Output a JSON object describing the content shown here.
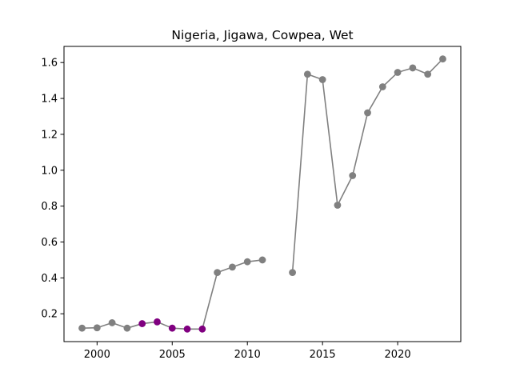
{
  "chart_data": {
    "type": "line",
    "title": "Nigeria, Jigawa, Cowpea, Wet",
    "xlabel": "",
    "ylabel": "",
    "xlim": [
      1997.8,
      2024.2
    ],
    "ylim": [
      0.045,
      1.69
    ],
    "x_ticks": [
      2000,
      2005,
      2010,
      2015,
      2020
    ],
    "x_tick_labels": [
      "2000",
      "2005",
      "2010",
      "2015",
      "2020"
    ],
    "y_ticks": [
      0.2,
      0.4,
      0.6,
      0.8,
      1.0,
      1.2,
      1.4,
      1.6
    ],
    "y_tick_labels": [
      "0.2",
      "0.4",
      "0.6",
      "0.8",
      "1.0",
      "1.2",
      "1.4",
      "1.6"
    ],
    "grid": false,
    "line_color": "#808080",
    "highlight_color": "#800080",
    "points": [
      {
        "x": 1999,
        "y": 0.12,
        "highlight": false
      },
      {
        "x": 2000,
        "y": 0.122,
        "highlight": false
      },
      {
        "x": 2001,
        "y": 0.15,
        "highlight": false
      },
      {
        "x": 2002,
        "y": 0.12,
        "highlight": false
      },
      {
        "x": 2003,
        "y": 0.145,
        "highlight": true
      },
      {
        "x": 2004,
        "y": 0.155,
        "highlight": true
      },
      {
        "x": 2005,
        "y": 0.12,
        "highlight": true
      },
      {
        "x": 2006,
        "y": 0.115,
        "highlight": true
      },
      {
        "x": 2007,
        "y": 0.115,
        "highlight": true
      },
      {
        "x": 2008,
        "y": 0.43,
        "highlight": false
      },
      {
        "x": 2009,
        "y": 0.46,
        "highlight": false
      },
      {
        "x": 2010,
        "y": 0.49,
        "highlight": false
      },
      {
        "x": 2011,
        "y": 0.5,
        "highlight": false
      },
      {
        "x": 2013,
        "y": 0.43,
        "highlight": false
      },
      {
        "x": 2014,
        "y": 1.535,
        "highlight": false
      },
      {
        "x": 2015,
        "y": 1.505,
        "highlight": false
      },
      {
        "x": 2016,
        "y": 0.805,
        "highlight": false
      },
      {
        "x": 2017,
        "y": 0.97,
        "highlight": false
      },
      {
        "x": 2018,
        "y": 1.32,
        "highlight": false
      },
      {
        "x": 2019,
        "y": 1.465,
        "highlight": false
      },
      {
        "x": 2020,
        "y": 1.545,
        "highlight": false
      },
      {
        "x": 2021,
        "y": 1.57,
        "highlight": false
      },
      {
        "x": 2022,
        "y": 1.535,
        "highlight": false
      },
      {
        "x": 2023,
        "y": 1.62,
        "highlight": false
      }
    ],
    "line_segments": [
      [
        1999,
        2000,
        2001,
        2002,
        2003,
        2004,
        2005,
        2006,
        2007,
        2008,
        2009,
        2010,
        2011
      ],
      [
        2013,
        2014,
        2015,
        2016,
        2017,
        2018,
        2019,
        2020,
        2021,
        2022,
        2023
      ]
    ]
  }
}
